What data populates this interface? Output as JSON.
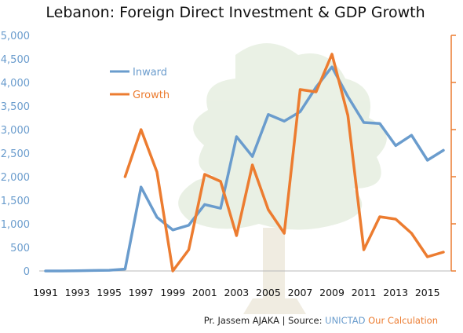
{
  "chart_data": {
    "type": "line",
    "title": "Lebanon: Foreign Direct Investment & GDP Growth",
    "x": [
      1991,
      1992,
      1993,
      1994,
      1995,
      1996,
      1997,
      1998,
      1999,
      2000,
      2001,
      2002,
      2003,
      2004,
      2005,
      2006,
      2007,
      2008,
      2009,
      2010,
      2011,
      2012,
      2013,
      2014,
      2015,
      2016
    ],
    "x_tick_labels": [
      "1991",
      "1993",
      "1995",
      "1997",
      "1999",
      "2001",
      "2003",
      "2005",
      "2007",
      "2009",
      "2011",
      "2013",
      "2015"
    ],
    "y_left": {
      "ylim": [
        0,
        5000
      ],
      "ticks": [
        "0",
        "500",
        "1,000",
        "1,500",
        "2,000",
        "2,500",
        "3,000",
        "3,500",
        "4,000",
        "4,500",
        "5,000"
      ]
    },
    "y_right": {
      "ylim": [
        0,
        10
      ],
      "ticks": []
    },
    "series": [
      {
        "name": "Inward",
        "axis": "left",
        "color": "#6a9ccd",
        "values": [
          0,
          0,
          5,
          10,
          15,
          40,
          1780,
          1140,
          870,
          970,
          1410,
          1330,
          2850,
          2430,
          3320,
          3180,
          3380,
          3900,
          4330,
          3700,
          3150,
          3130,
          2660,
          2880,
          2350,
          2560
        ]
      },
      {
        "name": "Growth",
        "axis": "right",
        "color": "#ec7c30",
        "values": [
          null,
          null,
          null,
          null,
          null,
          4.0,
          6.0,
          4.2,
          0.0,
          0.9,
          4.1,
          3.8,
          1.5,
          4.5,
          2.6,
          1.6,
          7.7,
          7.6,
          9.2,
          6.6,
          0.9,
          2.3,
          2.2,
          1.6,
          0.6,
          0.8
        ]
      }
    ],
    "legend": {
      "position": "top-left"
    },
    "grid": false
  },
  "footer": {
    "author": "Pr. Jassem AJAKA | Source: ",
    "source_name": "UNICTAD",
    "calc_label": "Our Calculation"
  }
}
